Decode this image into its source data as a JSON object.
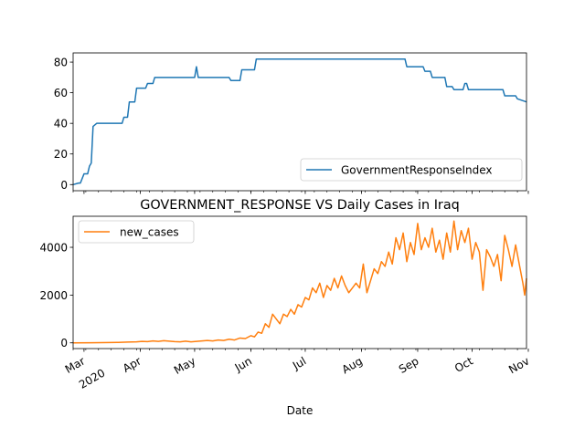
{
  "chart_data": [
    {
      "type": "line",
      "title": "",
      "xlabel": "",
      "ylabel": "",
      "ylim": [
        -4,
        86
      ],
      "yticks": [
        0,
        20,
        40,
        60,
        80
      ],
      "legend": "bottom-right",
      "grid": false,
      "series": [
        {
          "name": "GovernmentResponseIndex",
          "color": "#1f77b4",
          "x": [
            "2020-02-24",
            "2020-02-27",
            "2020-02-28",
            "2020-03-01",
            "2020-03-03",
            "2020-03-04",
            "2020-03-05",
            "2020-03-06",
            "2020-03-08",
            "2020-03-22",
            "2020-03-23",
            "2020-03-25",
            "2020-03-26",
            "2020-03-29",
            "2020-03-30",
            "2020-04-04",
            "2020-04-05",
            "2020-04-08",
            "2020-04-09",
            "2020-05-01",
            "2020-05-02",
            "2020-05-03",
            "2020-05-20",
            "2020-05-21",
            "2020-05-26",
            "2020-05-27",
            "2020-06-03",
            "2020-06-04",
            "2020-08-25",
            "2020-08-26",
            "2020-09-04",
            "2020-09-05",
            "2020-09-08",
            "2020-09-09",
            "2020-09-16",
            "2020-09-17",
            "2020-09-20",
            "2020-09-21",
            "2020-09-26",
            "2020-09-27",
            "2020-09-28",
            "2020-09-29",
            "2020-10-18",
            "2020-10-19",
            "2020-10-25",
            "2020-10-26",
            "2020-10-31"
          ],
          "values": [
            0,
            1,
            1,
            7,
            7,
            12,
            14,
            38,
            40,
            40,
            44,
            44,
            54,
            54,
            63,
            63,
            66,
            66,
            70,
            70,
            77,
            70,
            70,
            68,
            68,
            75,
            75,
            82,
            82,
            77,
            77,
            74,
            74,
            70,
            70,
            64,
            64,
            62,
            62,
            66,
            66,
            62,
            62,
            58,
            58,
            56,
            54
          ]
        }
      ]
    },
    {
      "type": "line",
      "title": "GOVERNMENT_RESPONSE VS Daily Cases in Iraq",
      "xlabel": "Date",
      "ylabel": "",
      "ylim": [
        -240,
        5300
      ],
      "yticks": [
        0,
        2000,
        4000
      ],
      "legend": "top-left",
      "grid": false,
      "xticks": {
        "dates": [
          "2020-03-01",
          "2020-04-01",
          "2020-05-01",
          "2020-06-01",
          "2020-07-01",
          "2020-08-01",
          "2020-09-01",
          "2020-10-01",
          "2020-11-01"
        ],
        "labels": [
          "Mar",
          "Apr",
          "May",
          "Jun",
          "Jul",
          "Aug",
          "Sep",
          "Oct",
          "Nov"
        ],
        "year_label": "2020"
      },
      "series": [
        {
          "name": "new_cases",
          "color": "#ff7f0e",
          "x": [
            "2020-02-24",
            "2020-03-05",
            "2020-03-15",
            "2020-03-20",
            "2020-03-25",
            "2020-03-30",
            "2020-04-02",
            "2020-04-05",
            "2020-04-08",
            "2020-04-11",
            "2020-04-14",
            "2020-04-17",
            "2020-04-20",
            "2020-04-23",
            "2020-04-26",
            "2020-04-29",
            "2020-05-02",
            "2020-05-05",
            "2020-05-08",
            "2020-05-11",
            "2020-05-14",
            "2020-05-17",
            "2020-05-20",
            "2020-05-23",
            "2020-05-26",
            "2020-05-29",
            "2020-06-01",
            "2020-06-03",
            "2020-06-05",
            "2020-06-07",
            "2020-06-09",
            "2020-06-11",
            "2020-06-13",
            "2020-06-15",
            "2020-06-17",
            "2020-06-19",
            "2020-06-21",
            "2020-06-23",
            "2020-06-25",
            "2020-06-27",
            "2020-06-29",
            "2020-07-01",
            "2020-07-03",
            "2020-07-05",
            "2020-07-07",
            "2020-07-09",
            "2020-07-11",
            "2020-07-13",
            "2020-07-15",
            "2020-07-17",
            "2020-07-19",
            "2020-07-21",
            "2020-07-23",
            "2020-07-25",
            "2020-07-27",
            "2020-07-29",
            "2020-07-31",
            "2020-08-02",
            "2020-08-04",
            "2020-08-06",
            "2020-08-08",
            "2020-08-10",
            "2020-08-12",
            "2020-08-14",
            "2020-08-16",
            "2020-08-18",
            "2020-08-20",
            "2020-08-22",
            "2020-08-24",
            "2020-08-26",
            "2020-08-28",
            "2020-08-30",
            "2020-09-01",
            "2020-09-03",
            "2020-09-05",
            "2020-09-07",
            "2020-09-09",
            "2020-09-11",
            "2020-09-13",
            "2020-09-15",
            "2020-09-17",
            "2020-09-19",
            "2020-09-21",
            "2020-09-23",
            "2020-09-25",
            "2020-09-27",
            "2020-09-29",
            "2020-10-01",
            "2020-10-03",
            "2020-10-05",
            "2020-10-07",
            "2020-10-09",
            "2020-10-11",
            "2020-10-13",
            "2020-10-15",
            "2020-10-17",
            "2020-10-19",
            "2020-10-21",
            "2020-10-23",
            "2020-10-25",
            "2020-10-27",
            "2020-10-29",
            "2020-10-30",
            "2020-10-31"
          ],
          "values": [
            0,
            5,
            15,
            20,
            30,
            40,
            60,
            50,
            80,
            60,
            90,
            70,
            50,
            40,
            70,
            40,
            60,
            80,
            100,
            80,
            120,
            100,
            150,
            120,
            200,
            180,
            300,
            250,
            450,
            400,
            800,
            650,
            1200,
            1000,
            800,
            1200,
            1100,
            1400,
            1200,
            1600,
            1500,
            1900,
            1800,
            2300,
            2100,
            2500,
            1900,
            2400,
            2200,
            2700,
            2300,
            2800,
            2400,
            2100,
            2300,
            2500,
            2300,
            3300,
            2100,
            2600,
            3100,
            2900,
            3400,
            3200,
            3800,
            3300,
            4400,
            3900,
            4600,
            3400,
            4200,
            3700,
            5000,
            3900,
            4400,
            4000,
            4800,
            3800,
            4300,
            3500,
            4600,
            3800,
            5100,
            3900,
            4700,
            4200,
            4800,
            3500,
            4200,
            3800,
            2200,
            3900,
            3600,
            3200,
            3700,
            2600,
            4500,
            3900,
            3200,
            4100,
            3300,
            2500,
            2000,
            2700
          ]
        }
      ]
    }
  ]
}
